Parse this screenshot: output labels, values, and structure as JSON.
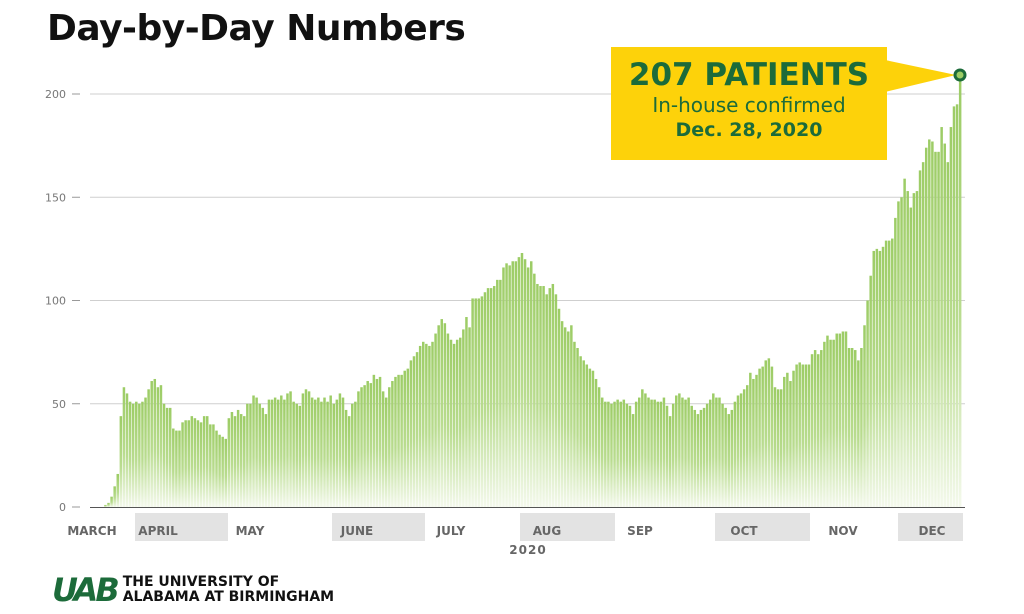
{
  "title": "Day-by-Day Numbers",
  "callout": {
    "headline": "207 PATIENTS",
    "subline": "In-house confirmed",
    "date": "Dec. 28, 2020"
  },
  "logo": {
    "mark": "UAB",
    "line1": "THE UNIVERSITY OF",
    "line2": "ALABAMA AT BIRMINGHAM"
  },
  "colors": {
    "bar": "#9ccc65",
    "callout": "#fdd20a",
    "accent": "#1c6b3a",
    "band": "#e3e3e3"
  },
  "chart_data": {
    "type": "bar",
    "title": "Day-by-Day Numbers",
    "xlabel": "2020",
    "ylabel": "",
    "ylim": [
      0,
      200
    ],
    "yticks": [
      0,
      50,
      100,
      150,
      200
    ],
    "grid": true,
    "months": [
      "MARCH",
      "APRIL",
      "MAY",
      "JUNE",
      "JULY",
      "AUG",
      "SEP",
      "OCT",
      "NOV",
      "DEC"
    ],
    "shaded_months": [
      "APRIL",
      "JUNE",
      "AUG",
      "OCT",
      "DEC"
    ],
    "highlight": {
      "value": 207,
      "label": "Dec. 28, 2020"
    },
    "values": [
      0,
      0,
      1,
      2,
      5,
      10,
      16,
      44,
      58,
      55,
      51,
      50,
      51,
      50,
      51,
      53,
      57,
      61,
      62,
      58,
      59,
      50,
      48,
      48,
      38,
      37,
      37,
      41,
      42,
      42,
      44,
      43,
      42,
      41,
      44,
      44,
      40,
      40,
      37,
      35,
      34,
      33,
      43,
      46,
      44,
      47,
      45,
      44,
      50,
      50,
      54,
      53,
      50,
      48,
      45,
      52,
      52,
      53,
      52,
      54,
      52,
      55,
      56,
      51,
      50,
      49,
      55,
      57,
      56,
      53,
      52,
      53,
      51,
      53,
      51,
      54,
      50,
      52,
      55,
      53,
      47,
      44,
      50,
      51,
      56,
      58,
      59,
      61,
      60,
      64,
      62,
      63,
      56,
      53,
      58,
      61,
      63,
      64,
      64,
      66,
      67,
      71,
      73,
      75,
      78,
      80,
      79,
      78,
      80,
      84,
      88,
      91,
      89,
      84,
      81,
      79,
      81,
      82,
      86,
      92,
      87,
      101,
      101,
      101,
      102,
      104,
      106,
      106,
      107,
      110,
      110,
      116,
      118,
      117,
      119,
      119,
      121,
      123,
      120,
      116,
      119,
      113,
      108,
      107,
      107,
      103,
      106,
      108,
      103,
      96,
      90,
      87,
      85,
      88,
      80,
      77,
      73,
      71,
      69,
      67,
      66,
      62,
      58,
      53,
      51,
      51,
      50,
      51,
      52,
      51,
      52,
      50,
      49,
      45,
      51,
      53,
      57,
      55,
      53,
      52,
      52,
      51,
      51,
      53,
      49,
      44,
      50,
      54,
      55,
      53,
      52,
      53,
      49,
      47,
      45,
      47,
      48,
      50,
      52,
      55,
      53,
      53,
      50,
      48,
      45,
      47,
      51,
      54,
      55,
      57,
      59,
      65,
      62,
      64,
      67,
      68,
      71,
      72,
      68,
      58,
      57,
      57,
      63,
      65,
      61,
      66,
      69,
      70,
      69,
      69,
      69,
      74,
      76,
      74,
      76,
      80,
      83,
      81,
      81,
      84,
      84,
      85,
      85,
      77,
      77,
      76,
      71,
      77,
      88,
      100,
      112,
      124,
      125,
      124,
      126,
      129,
      129,
      130,
      140,
      148,
      150,
      159,
      153,
      145,
      152,
      153,
      163,
      167,
      174,
      178,
      177,
      172,
      172,
      184,
      176,
      167,
      184,
      194,
      195,
      207
    ]
  }
}
